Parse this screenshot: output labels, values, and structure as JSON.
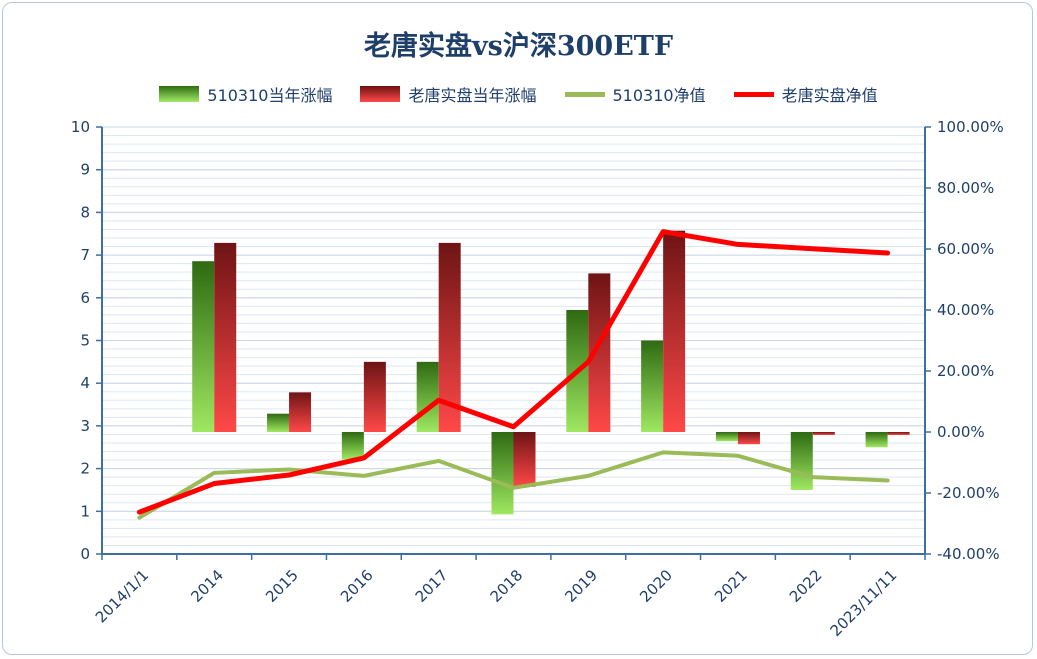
{
  "chart_data": {
    "type": "bar",
    "title": "老唐实盘vs沪深300ETF",
    "categories": [
      "2014/1/1",
      "2014",
      "2015",
      "2016",
      "2017",
      "2018",
      "2019",
      "2020",
      "2021",
      "2022",
      "2023/11/11"
    ],
    "y_left": {
      "ylim": [
        0,
        10
      ],
      "ticks": [
        "0",
        "1",
        "2",
        "3",
        "4",
        "5",
        "6",
        "7",
        "8",
        "9",
        "10"
      ]
    },
    "y_right": {
      "ylim": [
        -40,
        100
      ],
      "ticks": [
        "-40.00%",
        "-20.00%",
        "0.00%",
        "20.00%",
        "40.00%",
        "60.00%",
        "80.00%",
        "100.00%"
      ]
    },
    "series": [
      {
        "name": "510310当年涨幅",
        "kind": "bar",
        "axis": "right",
        "color": "#5cb82e",
        "values": [
          null,
          56,
          6,
          -9,
          23,
          -27,
          40,
          30,
          -3,
          -19,
          -5
        ]
      },
      {
        "name": "老唐实盘当年涨幅",
        "kind": "bar",
        "axis": "right",
        "color": "#e52b2b",
        "values": [
          null,
          62,
          13,
          23,
          62,
          -18,
          52,
          66,
          -4,
          -1,
          -1
        ]
      },
      {
        "name": "510310净值",
        "kind": "line",
        "axis": "left",
        "color": "#9bbb59",
        "values": [
          0.85,
          1.9,
          1.98,
          1.83,
          2.18,
          1.55,
          1.83,
          2.38,
          2.3,
          1.8,
          1.72
        ]
      },
      {
        "name": "老唐实盘净值",
        "kind": "line",
        "axis": "left",
        "color": "#ff0000",
        "values": [
          0.98,
          1.65,
          1.85,
          2.25,
          3.6,
          2.98,
          4.5,
          7.55,
          7.25,
          7.15,
          7.05
        ]
      }
    ],
    "grid": true,
    "legend_position": "top"
  }
}
